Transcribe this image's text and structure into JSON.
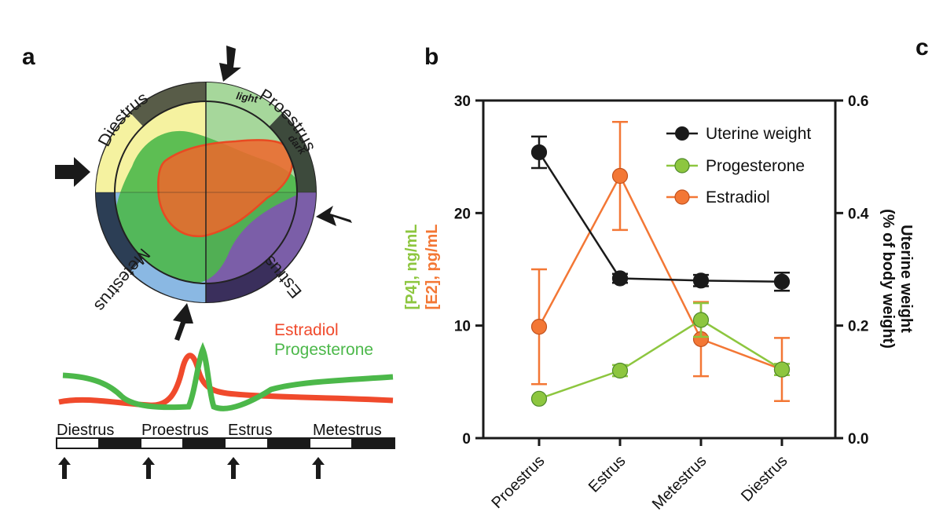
{
  "panels": [
    "a",
    "b",
    "c"
  ],
  "panel_a": {
    "wheel_stages": [
      "Proestrus",
      "Estrus",
      "Metestrus",
      "Diestrus"
    ],
    "light_label": "light",
    "dark_label": "dark",
    "hormone_labels": {
      "estradiol": "Estradiol",
      "progesterone": "Progesterone"
    },
    "timeline_stages": [
      "Diestrus",
      "Proestrus",
      "Estrus",
      "Metestrus"
    ],
    "colors": {
      "proestrus": "#a6d79b",
      "estrus": "#7b5ea8",
      "metestrus": "#8ab8e3",
      "diestrus": "#f5f2a0",
      "estradiol": "#f04a2c",
      "progesterone": "#4cb84a"
    }
  },
  "chart_data": {
    "type": "line",
    "categories": [
      "Proestrus",
      "Estrus",
      "Metestrus",
      "Diestrus"
    ],
    "left_axis": {
      "label_p4": "[P4], ng/mL",
      "label_e2": "[E2], pg/mL",
      "ylim": [
        0,
        30
      ],
      "ticks": [
        "0",
        "10",
        "20",
        "30"
      ]
    },
    "right_axis": {
      "label_line1": "Uterine weight",
      "label_line2": "(% of body weight)",
      "ylim": [
        0,
        0.6
      ],
      "ticks": [
        "0.0",
        "0.2",
        "0.4",
        "0.6"
      ]
    },
    "series": [
      {
        "name": "Uterine weight",
        "color": "#1a1a1a",
        "axis": "right",
        "values": [
          0.508,
          0.284,
          0.28,
          0.278
        ],
        "errors": [
          0.028,
          0.008,
          0.01,
          0.016
        ]
      },
      {
        "name": "Progesterone",
        "color": "#8dc63f",
        "axis": "left",
        "values": [
          3.5,
          6.0,
          10.5,
          6.1
        ],
        "errors": [
          0,
          0.5,
          1.5,
          0.5
        ]
      },
      {
        "name": "Estradiol",
        "color": "#f37735",
        "axis": "left",
        "values": [
          9.9,
          23.3,
          8.8,
          6.1
        ],
        "errors": [
          5.1,
          4.8,
          3.3,
          2.8
        ]
      }
    ],
    "grid": false,
    "legend": "top-right"
  }
}
